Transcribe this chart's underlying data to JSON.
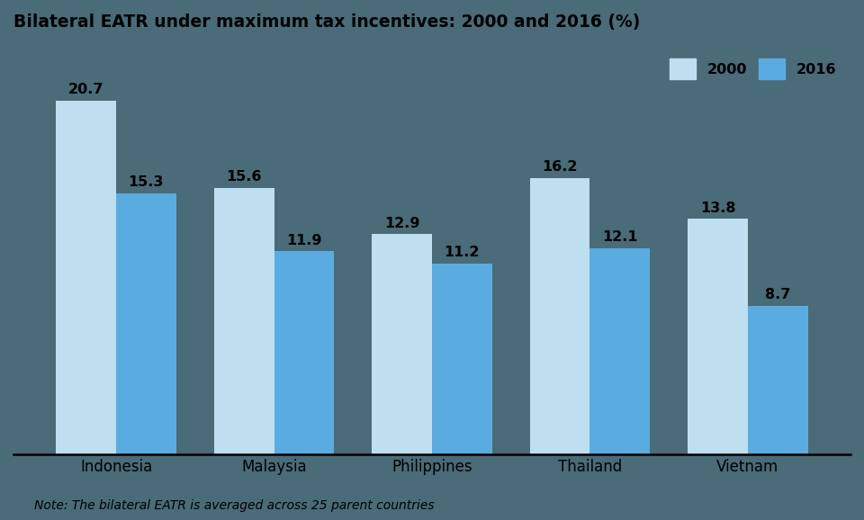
{
  "title": "Bilateral EATR under maximum tax incentives: 2000 and 2016 (%)",
  "categories": [
    "Indonesia",
    "Malaysia",
    "Philippines",
    "Thailand",
    "Vietnam"
  ],
  "values_2000": [
    20.7,
    15.6,
    12.9,
    16.2,
    13.8
  ],
  "values_2016": [
    15.3,
    11.9,
    11.2,
    12.1,
    8.7
  ],
  "color_2000": "#bddff0",
  "color_2016": "#5aace0",
  "legend_labels": [
    "2000",
    "2016"
  ],
  "note": "Note: The bilateral EATR is averaged across 25 parent countries",
  "ylim": [
    0,
    24
  ],
  "bar_width": 0.38,
  "title_fontsize": 13.5,
  "label_fontsize": 11.5,
  "tick_fontsize": 12,
  "note_fontsize": 10,
  "background_color": "#4a6b78"
}
